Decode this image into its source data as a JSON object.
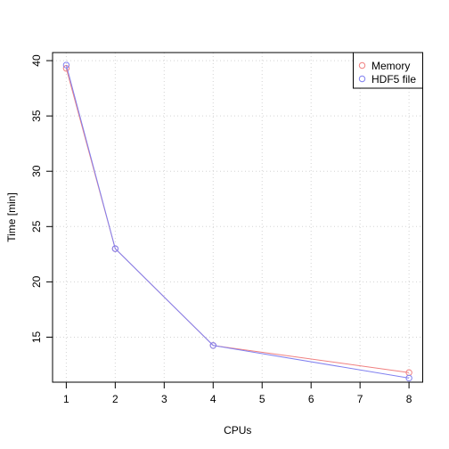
{
  "chart_data": {
    "type": "line",
    "title": "",
    "xlabel": "CPUs",
    "ylabel": "Time [min]",
    "x": [
      1,
      2,
      4,
      8
    ],
    "xlim": [
      0.72,
      8.28
    ],
    "ylim": [
      10.93,
      40.73
    ],
    "xticks": [
      1,
      2,
      3,
      4,
      5,
      6,
      7,
      8
    ],
    "yticks": [
      15,
      20,
      25,
      30,
      35,
      40
    ],
    "grid": true,
    "legend_position": "top-right",
    "series": [
      {
        "name": "Memory",
        "color": "#f08080",
        "marker": "open-circle",
        "values": [
          39.3,
          23.0,
          14.25,
          11.8
        ]
      },
      {
        "name": "HDF5 file",
        "color": "#8080f0",
        "marker": "open-circle",
        "values": [
          39.6,
          23.0,
          14.25,
          11.3
        ]
      }
    ]
  }
}
